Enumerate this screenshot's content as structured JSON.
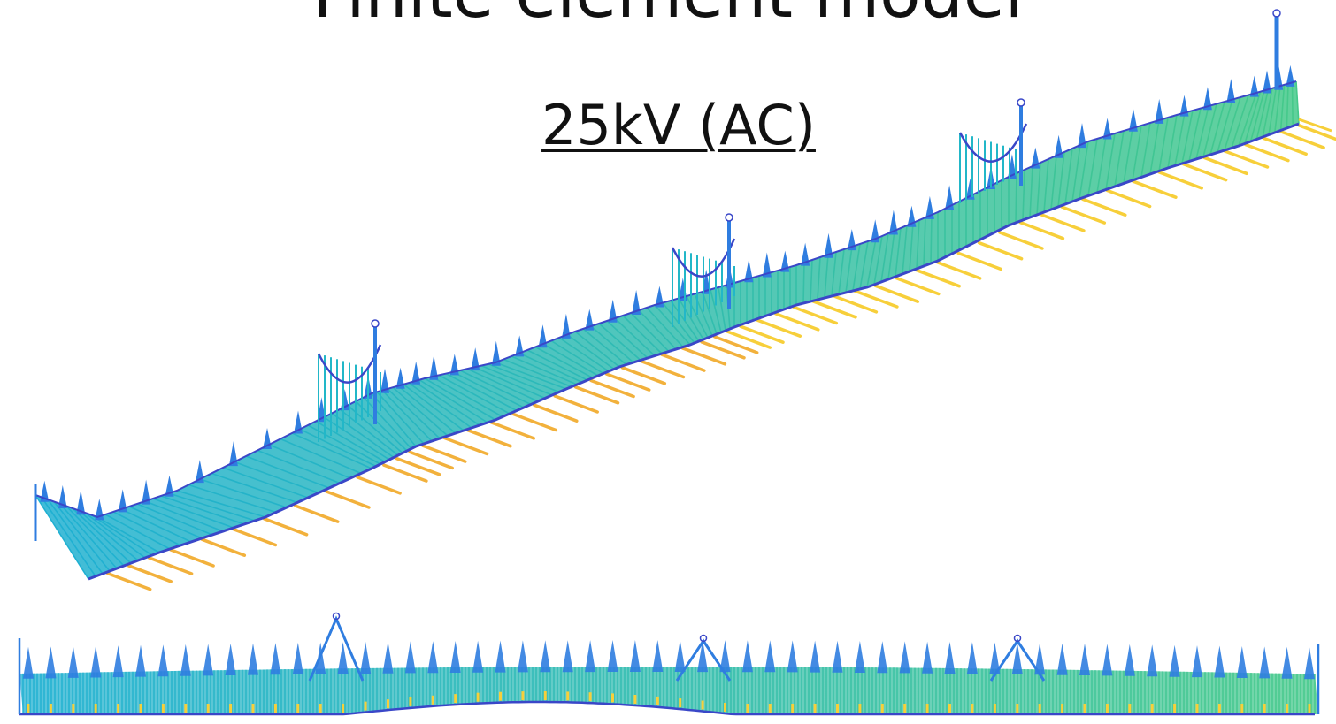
{
  "title": "Finite element model",
  "subtitle": "25kV (AC)",
  "colors": {
    "span_start": "#1fb0d2",
    "span_end": "#45c98a",
    "wire": "#3a47c8",
    "pole": "#2f7de0",
    "cantilever": "#f7cf3a",
    "ground": "#f2b13c"
  },
  "views": [
    {
      "name": "isometric-view",
      "spans": 58,
      "overlaps": 3
    },
    {
      "name": "side-elevation-view",
      "spans": 58,
      "overlaps": 3
    }
  ]
}
